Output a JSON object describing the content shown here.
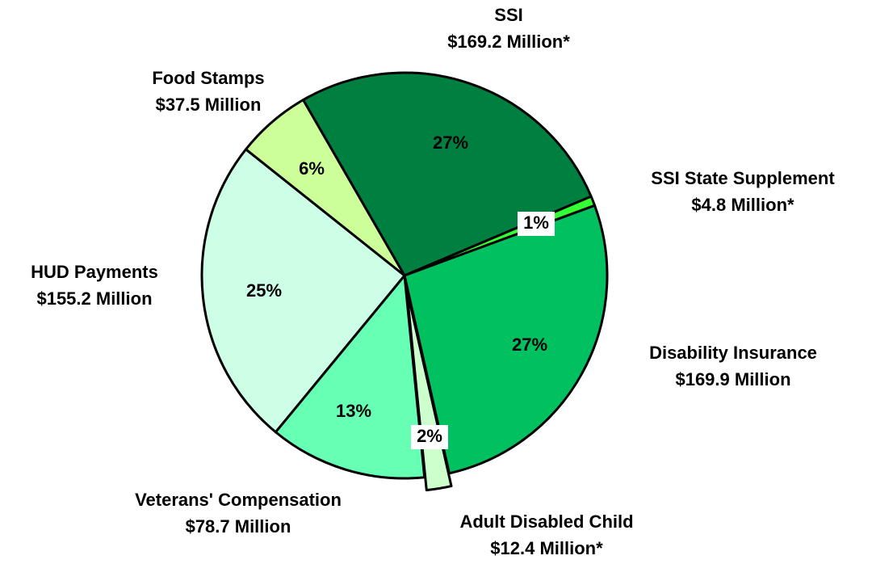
{
  "chart_data": {
    "type": "pie",
    "categories": [
      "SSI",
      "SSI State Supplement",
      "Disability Insurance",
      "Adult Disabled Child",
      "Veterans' Compensation",
      "HUD Payments",
      "Food Stamps"
    ],
    "values": [
      169.2,
      4.8,
      169.9,
      12.4,
      78.7,
      155.2,
      37.5
    ],
    "value_labels": [
      "$169.2 Million*",
      "$4.8 Million*",
      "$169.9 Million",
      "$12.4 Million*",
      "$78.7 Million",
      "$155.2 Million",
      "$37.5 Million"
    ],
    "percents": [
      27,
      1,
      27,
      2,
      13,
      25,
      6
    ],
    "percent_labels": [
      "27%",
      "1%",
      "27%",
      "2%",
      "13%",
      "25%",
      "6%"
    ],
    "colors": [
      "#008040",
      "#33ff33",
      "#00c060",
      "#ccffcc",
      "#66ffb3",
      "#ccffe6",
      "#ccff99"
    ],
    "exploded": [
      false,
      false,
      false,
      true,
      false,
      false,
      false
    ]
  }
}
